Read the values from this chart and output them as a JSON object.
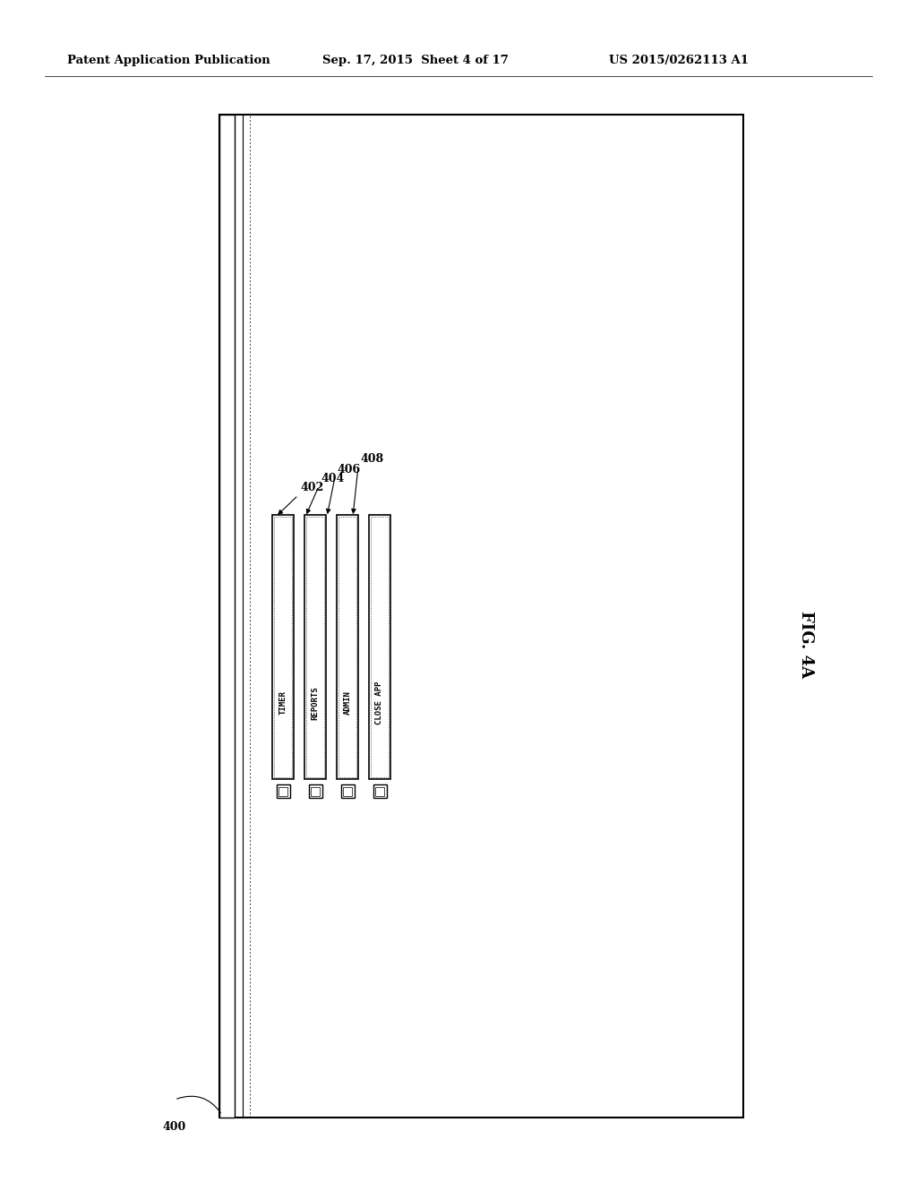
{
  "bg_color": "#ffffff",
  "header_text": "Patent Application Publication",
  "header_date": "Sep. 17, 2015  Sheet 4 of 17",
  "header_patent": "US 2015/0262113 A1",
  "fig_label": "FIG. 4A",
  "menu_items": [
    {
      "label": "TIMER",
      "ref": "402"
    },
    {
      "label": "REPORTS",
      "ref": "404"
    },
    {
      "label": "ADMIN",
      "ref": "406"
    },
    {
      "label": "CLOSE APP",
      "ref": "408"
    }
  ],
  "ref_label_fontsize": 9,
  "menu_label_fontsize": 6.5,
  "header_fontsize": 9.5,
  "fig_label_fontsize": 13,
  "ref400_label": "400"
}
